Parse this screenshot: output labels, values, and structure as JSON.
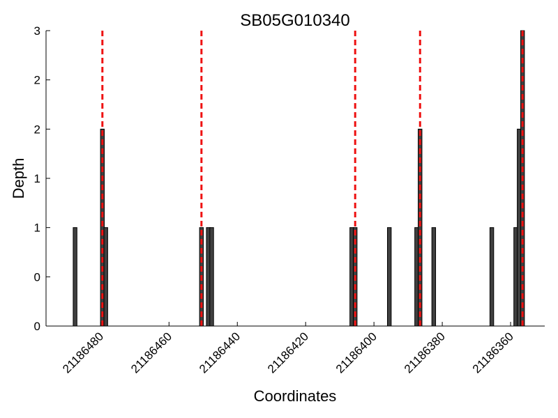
{
  "chart_data": {
    "type": "bar",
    "title": "SB05G010340",
    "xlabel": "Coordinates",
    "ylabel": "Depth",
    "x_reversed": true,
    "xlim": [
      21186496,
      21186350
    ],
    "ylim": [
      0,
      3
    ],
    "x_ticks": [
      {
        "value": 21186480,
        "label": "21186480"
      },
      {
        "value": 21186460,
        "label": "21186460"
      },
      {
        "value": 21186440,
        "label": "21186440"
      },
      {
        "value": 21186420,
        "label": "21186420"
      },
      {
        "value": 21186400,
        "label": "21186400"
      },
      {
        "value": 21186380,
        "label": "21186380"
      },
      {
        "value": 21186360,
        "label": "21186360"
      }
    ],
    "y_ticks": [
      {
        "value": 0,
        "label": "0"
      },
      {
        "value": 0.5,
        "label": "0"
      },
      {
        "value": 1,
        "label": "1"
      },
      {
        "value": 1.5,
        "label": "1"
      },
      {
        "value": 2,
        "label": "2"
      },
      {
        "value": 2.5,
        "label": "2"
      },
      {
        "value": 3,
        "label": "3"
      }
    ],
    "bar_color": "#404040",
    "bar_edge_color": "#000000",
    "marker_color": "#ee1111",
    "bars": [
      {
        "x": 21186487.5,
        "value": 1
      },
      {
        "x": 21186479.5,
        "value": 2
      },
      {
        "x": 21186478.5,
        "value": 1
      },
      {
        "x": 21186450.5,
        "value": 1
      },
      {
        "x": 21186448.5,
        "value": 1
      },
      {
        "x": 21186447.5,
        "value": 1
      },
      {
        "x": 21186406.5,
        "value": 1
      },
      {
        "x": 21186405.5,
        "value": 1
      },
      {
        "x": 21186395.5,
        "value": 1
      },
      {
        "x": 21186387.5,
        "value": 1
      },
      {
        "x": 21186386.5,
        "value": 2
      },
      {
        "x": 21186382.5,
        "value": 1
      },
      {
        "x": 21186365.5,
        "value": 1
      },
      {
        "x": 21186358.5,
        "value": 1
      },
      {
        "x": 21186357.5,
        "value": 2
      },
      {
        "x": 21186356.5,
        "value": 3
      }
    ],
    "markers": [
      21186479.5,
      21186450.5,
      21186405.5,
      21186386.5,
      21186356.5
    ]
  }
}
